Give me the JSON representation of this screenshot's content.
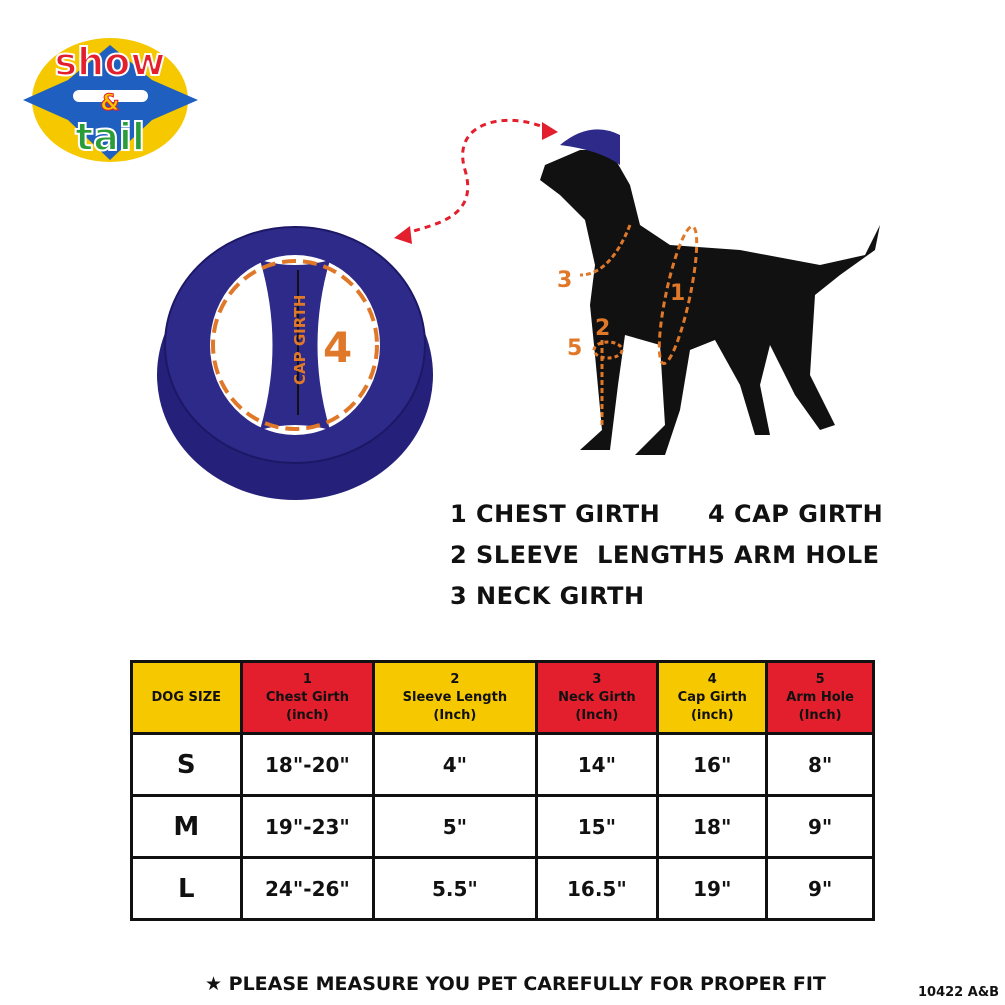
{
  "logo": {
    "text": "show & tail",
    "colors": [
      "#e31e2d",
      "#f5c800",
      "#2a9d3a",
      "#1f5fbf"
    ]
  },
  "cap": {
    "label": "CAP GIRTH",
    "number": "4",
    "color": "#2e2a8a",
    "accent": "#e0782a"
  },
  "dog_markers": [
    "1",
    "2",
    "3",
    "5"
  ],
  "legend": [
    "1 CHEST GIRTH",
    "2 SLEEVE  LENGTH",
    "3 NECK GIRTH",
    "4 CAP GIRTH",
    "5 ARM HOLE"
  ],
  "table": {
    "headers": [
      {
        "num": "",
        "name": "DOG SIZE",
        "unit": ""
      },
      {
        "num": "1",
        "name": "Chest Girth",
        "unit": "(inch)"
      },
      {
        "num": "2",
        "name": "Sleeve Length",
        "unit": "(Inch)"
      },
      {
        "num": "3",
        "name": "Neck Girth",
        "unit": "(Inch)"
      },
      {
        "num": "4",
        "name": "Cap Girth",
        "unit": "(inch)"
      },
      {
        "num": "5",
        "name": "Arm Hole",
        "unit": "(Inch)"
      }
    ],
    "rows": [
      [
        "S",
        "18\"-20\"",
        "4\"",
        "14\"",
        "16\"",
        "8\""
      ],
      [
        "M",
        "19\"-23\"",
        "5\"",
        "15\"",
        "18\"",
        "9\""
      ],
      [
        "L",
        "24\"-26\"",
        "5.5\"",
        "16.5\"",
        "19\"",
        "9\""
      ]
    ]
  },
  "note": "★ PLEASE MEASURE YOU PET CAREFULLY FOR PROPER FIT",
  "code": "10422 A&B"
}
